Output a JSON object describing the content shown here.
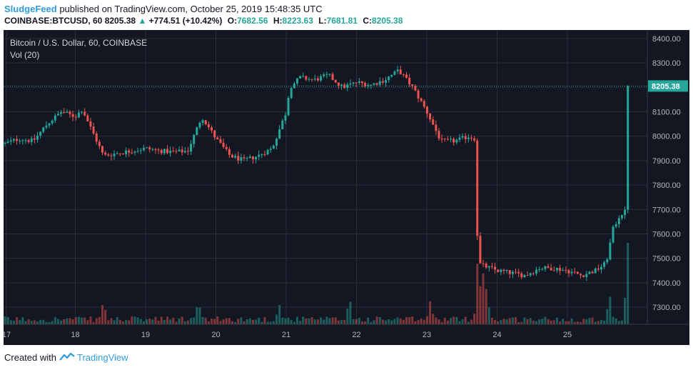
{
  "header": {
    "author": "SludgeFeed",
    "published": "published on TradingView.com, October 25, 2019 15:48:35 UTC"
  },
  "quote": {
    "symbol": "COINBASE:BTCUSD, 60",
    "last": "8205.38",
    "change": "+774.51 (+10.42%)",
    "o_label": "O:",
    "o": "7682.56",
    "h_label": "H:",
    "h": "8223.63",
    "l_label": "L:",
    "l": "7681.81",
    "c_label": "C:",
    "c": "8205.38"
  },
  "legend": {
    "title": "Bitcoin / U.S. Dollar, 60, COINBASE",
    "volume": "Vol (20)"
  },
  "footer": {
    "created_with": "Created with",
    "brand": "TradingView"
  },
  "colors": {
    "background": "#131722",
    "grid": "#2a2e39",
    "up": "#26a69a",
    "down": "#ef5350",
    "axis_text": "#b2b5be",
    "price_line": "#26a69a"
  },
  "chart_data": {
    "type": "candlestick",
    "title": "Bitcoin / U.S. Dollar, 60, COINBASE",
    "ylim": [
      7230,
      8420
    ],
    "y_ticks": [
      8400,
      8300,
      8200,
      8100,
      8000,
      7900,
      7800,
      7700,
      7600,
      7500,
      7400,
      7300
    ],
    "y_tick_labels": [
      "8400.00",
      "8300.00",
      "8200.00",
      "8100.00",
      "8000.00",
      "7900.00",
      "7800.00",
      "7700.00",
      "7600.00",
      "7500.00",
      "7400.00",
      "7300.00"
    ],
    "x_ticks": [
      0.2,
      10.0,
      20.0,
      30.0,
      40.0,
      50.0,
      60.0,
      70.0,
      80.0
    ],
    "x_tick_labels": [
      "17",
      "18",
      "19",
      "20",
      "21",
      "22",
      "23",
      "24",
      "25"
    ],
    "last_price": 8205.38,
    "last_price_label": "8205.38",
    "grid": true,
    "anchors": [
      [
        0,
        7970
      ],
      [
        2,
        7990
      ],
      [
        4,
        7980
      ],
      [
        6,
        8050
      ],
      [
        8,
        8100
      ],
      [
        10,
        8080
      ],
      [
        11,
        8110
      ],
      [
        14,
        7920
      ],
      [
        16,
        7930
      ],
      [
        18,
        7940
      ],
      [
        20,
        7950
      ],
      [
        22,
        7940
      ],
      [
        24,
        7935
      ],
      [
        26,
        7940
      ],
      [
        28,
        8080
      ],
      [
        30,
        7990
      ],
      [
        32,
        7920
      ],
      [
        34,
        7900
      ],
      [
        36,
        7920
      ],
      [
        38,
        7950
      ],
      [
        40,
        8100
      ],
      [
        40.5,
        8200
      ],
      [
        42,
        8240
      ],
      [
        44,
        8230
      ],
      [
        46,
        8250
      ],
      [
        48,
        8200
      ],
      [
        50,
        8220
      ],
      [
        52,
        8210
      ],
      [
        54,
        8230
      ],
      [
        56,
        8270
      ],
      [
        58,
        8200
      ],
      [
        60,
        8100
      ],
      [
        62,
        7980
      ],
      [
        64,
        7980
      ],
      [
        66,
        8000
      ],
      [
        66.8,
        7990
      ],
      [
        67.3,
        7480
      ],
      [
        68,
        7470
      ],
      [
        70,
        7450
      ],
      [
        72,
        7440
      ],
      [
        74,
        7430
      ],
      [
        76,
        7460
      ],
      [
        78,
        7460
      ],
      [
        80,
        7450
      ],
      [
        82,
        7430
      ],
      [
        84,
        7450
      ],
      [
        85.5,
        7480
      ],
      [
        86.5,
        7620
      ],
      [
        87.5,
        7680
      ],
      [
        88.2,
        7690
      ],
      [
        88.6,
        8205
      ]
    ],
    "volume_spikes": [
      [
        14,
        30
      ],
      [
        27.5,
        30
      ],
      [
        39,
        25
      ],
      [
        49,
        35
      ],
      [
        60.5,
        30
      ],
      [
        67.3,
        100
      ],
      [
        68,
        70
      ],
      [
        68.5,
        50
      ],
      [
        86,
        40
      ],
      [
        88.6,
        110
      ]
    ]
  }
}
